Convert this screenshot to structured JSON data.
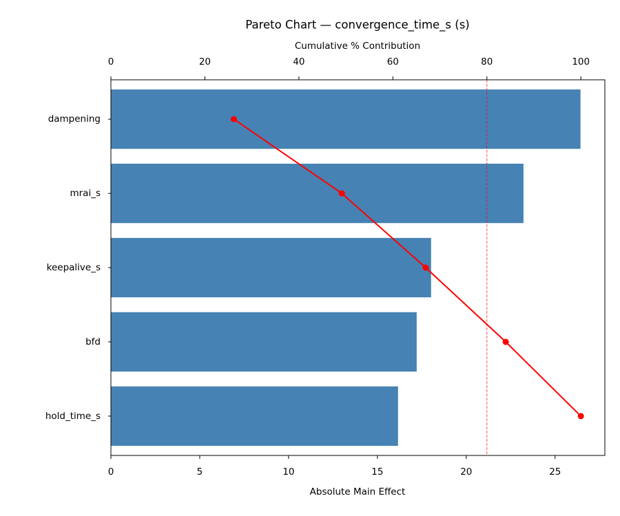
{
  "chart_data": {
    "type": "pareto",
    "title": "Pareto Chart — convergence_time_s (s)",
    "xlabel": "Absolute Main Effect",
    "x2label": "Cumulative % Contribution",
    "categories": [
      "dampening",
      "mrai_s",
      "keepalive_s",
      "bfd",
      "hold_time_s"
    ],
    "series": [
      {
        "color": "#4682b4",
        "values": [
          26.43,
          23.22,
          18.02,
          17.21,
          16.16
        ]
      },
      {
        "color": "#ff0000",
        "axis": "x2",
        "values": [
          26.16,
          49.14,
          66.98,
          84.01,
          100
        ]
      }
    ],
    "xlim": [
      0,
      27.8
    ],
    "xticks": [
      0,
      5,
      10,
      15,
      20,
      25
    ],
    "x2lim": [
      0,
      105.1
    ],
    "x2ticks": [
      0,
      20,
      40,
      60,
      80,
      100
    ],
    "threshold": 80,
    "threshold_color": "#ff0000"
  }
}
